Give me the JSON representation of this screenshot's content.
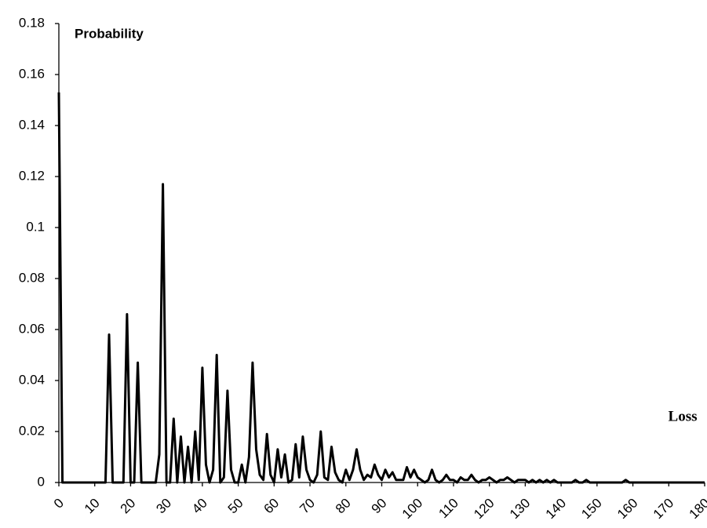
{
  "chart_data": {
    "type": "line",
    "y_label": "Probability",
    "x_label": "Loss",
    "x": [
      0,
      1,
      2,
      3,
      4,
      5,
      6,
      7,
      8,
      9,
      10,
      11,
      12,
      13,
      14,
      15,
      16,
      17,
      18,
      19,
      20,
      21,
      22,
      23,
      24,
      25,
      26,
      27,
      28,
      29,
      30,
      31,
      32,
      33,
      34,
      35,
      36,
      37,
      38,
      39,
      40,
      41,
      42,
      43,
      44,
      45,
      46,
      47,
      48,
      49,
      50,
      51,
      52,
      53,
      54,
      55,
      56,
      57,
      58,
      59,
      60,
      61,
      62,
      63,
      64,
      65,
      66,
      67,
      68,
      69,
      70,
      71,
      72,
      73,
      74,
      75,
      76,
      77,
      78,
      79,
      80,
      81,
      82,
      83,
      84,
      85,
      86,
      87,
      88,
      89,
      90,
      91,
      92,
      93,
      94,
      95,
      96,
      97,
      98,
      99,
      100,
      101,
      102,
      103,
      104,
      105,
      106,
      107,
      108,
      109,
      110,
      111,
      112,
      113,
      114,
      115,
      116,
      117,
      118,
      119,
      120,
      121,
      122,
      123,
      124,
      125,
      126,
      127,
      128,
      129,
      130,
      131,
      132,
      133,
      134,
      135,
      136,
      137,
      138,
      139,
      140,
      141,
      142,
      143,
      144,
      145,
      146,
      147,
      148,
      149,
      150,
      151,
      152,
      153,
      154,
      155,
      156,
      157,
      158,
      159,
      160,
      161,
      162,
      163,
      164,
      165,
      166,
      167,
      168,
      169,
      170,
      171,
      172,
      173,
      174,
      175,
      176,
      177,
      178,
      179,
      180
    ],
    "values": [
      0.153,
      0,
      0,
      0,
      0,
      0,
      0,
      0,
      0,
      0,
      0,
      0,
      0,
      0,
      0.058,
      0,
      0,
      0,
      0,
      0.066,
      0,
      0,
      0.047,
      0,
      0,
      0,
      0,
      0,
      0.011,
      0.117,
      0,
      0,
      0.025,
      0,
      0.018,
      0,
      0.014,
      0,
      0.02,
      0.001,
      0.045,
      0.007,
      0,
      0.005,
      0.05,
      0,
      0.002,
      0.036,
      0.005,
      0,
      0,
      0.007,
      0,
      0.01,
      0.047,
      0.013,
      0.003,
      0.001,
      0.019,
      0.003,
      0,
      0.013,
      0.002,
      0.011,
      0,
      0.001,
      0.015,
      0.002,
      0.018,
      0.005,
      0.001,
      0,
      0.003,
      0.02,
      0.002,
      0.001,
      0.014,
      0.004,
      0.001,
      0,
      0.005,
      0.001,
      0.005,
      0.013,
      0.005,
      0.001,
      0.003,
      0.002,
      0.007,
      0.003,
      0.001,
      0.005,
      0.002,
      0.004,
      0.001,
      0.001,
      0.001,
      0.006,
      0.002,
      0.005,
      0.002,
      0.001,
      0,
      0.001,
      0.005,
      0.001,
      0,
      0.001,
      0.003,
      0.001,
      0.001,
      0,
      0.002,
      0.001,
      0.001,
      0.003,
      0.001,
      0,
      0.001,
      0.001,
      0.002,
      0.001,
      0,
      0.001,
      0.001,
      0.002,
      0.001,
      0,
      0.001,
      0.001,
      0.001,
      0,
      0.001,
      0,
      0.001,
      0,
      0.001,
      0,
      0.001,
      0,
      0,
      0,
      0,
      0,
      0.001,
      0,
      0,
      0.001,
      0,
      0,
      0,
      0,
      0,
      0,
      0,
      0,
      0,
      0,
      0.001,
      0,
      0,
      0,
      0,
      0,
      0,
      0,
      0,
      0,
      0,
      0,
      0,
      0,
      0,
      0,
      0,
      0,
      0,
      0,
      0,
      0,
      0
    ],
    "color": "#000000",
    "xlim": [
      0,
      180
    ],
    "xticks": [
      0,
      10,
      20,
      30,
      40,
      50,
      60,
      70,
      80,
      90,
      100,
      110,
      120,
      130,
      140,
      150,
      160,
      170,
      180
    ],
    "ylim": [
      0,
      0.18
    ],
    "yticks": [
      0,
      0.02,
      0.04,
      0.06,
      0.08,
      0.1,
      0.12,
      0.14,
      0.16,
      0.18
    ],
    "grid": false
  }
}
